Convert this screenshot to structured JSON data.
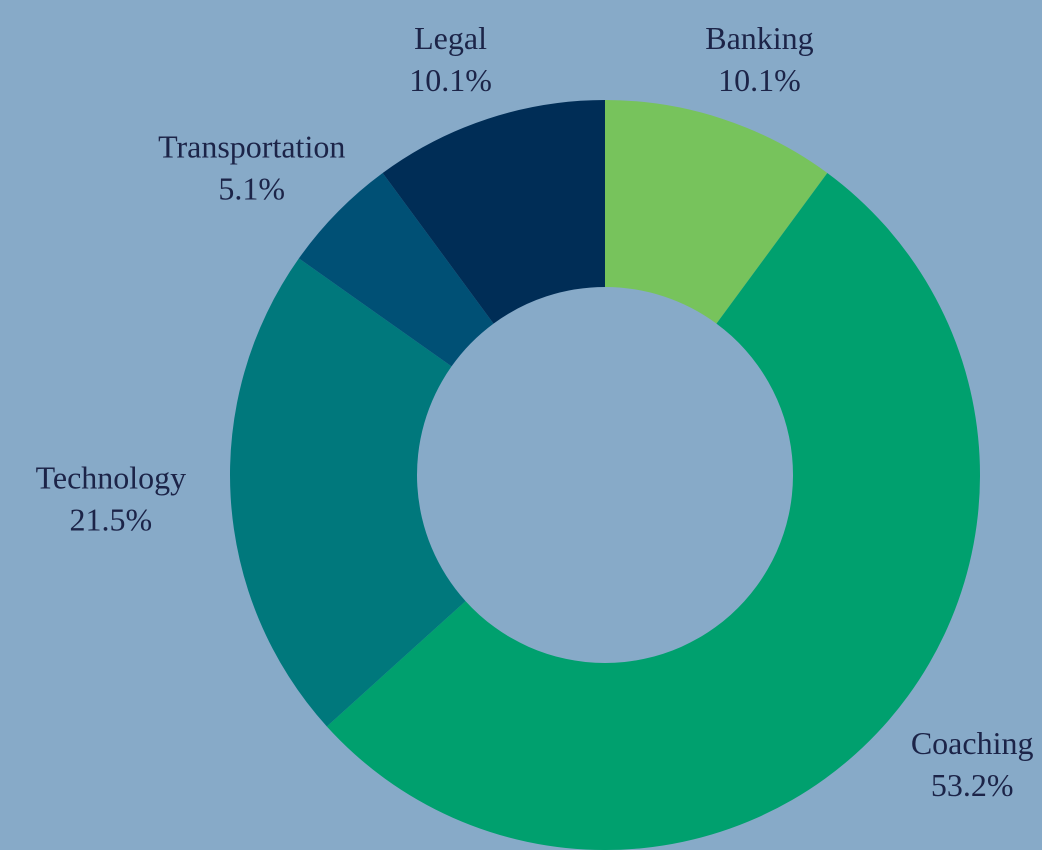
{
  "chart_data": {
    "type": "donut",
    "categories": [
      "Banking",
      "Coaching",
      "Technology",
      "Transportation",
      "Legal"
    ],
    "values": [
      10.1,
      53.2,
      21.5,
      5.1,
      10.1
    ],
    "value_labels": [
      "10.1%",
      "53.2%",
      "21.5%",
      "5.1%",
      "10.1%"
    ],
    "colors": [
      "#77c35c",
      "#00a06e",
      "#00787c",
      "#005075",
      "#002d56"
    ]
  }
}
